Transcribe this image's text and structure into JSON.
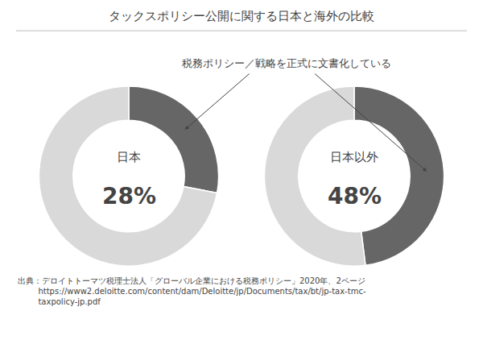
{
  "title": "タックスポリシー公開に関する日本と海外の比較",
  "annotations": [
    "税務ポリシー／戦略を正式に文書化している",
    "出典：デロイトトーマツ税理士法人「グローバル企業における税務ポリシー」2020年、2ページ",
    "        https://www2.deloitte.com/content/dam/Deloitte/jp/Documents/tax/bt/jp-tax-tmc-",
    "        taxpolicy-jp.pdf"
  ],
  "chart_data": [
    {
      "type": "pie",
      "title": "日本",
      "categories": [
        null,
        null
      ],
      "values": [
        28,
        72
      ],
      "value_labels": [
        "28%",
        null
      ],
      "colors": [
        "#666666",
        "#d9d9d9"
      ]
    },
    {
      "type": "pie",
      "title": "日本以外",
      "categories": [
        null,
        null
      ],
      "values": [
        48,
        52
      ],
      "value_labels": [
        "48%",
        null
      ],
      "colors": [
        "#666666",
        "#d9d9d9"
      ]
    }
  ]
}
